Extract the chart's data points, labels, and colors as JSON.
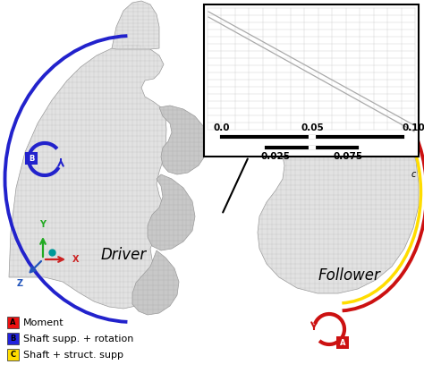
{
  "fig_width": 4.74,
  "fig_height": 4.17,
  "dpi": 100,
  "bg_color": "#ffffff",
  "legend": [
    {
      "label": "A",
      "text": "Moment",
      "color": "#ee1111"
    },
    {
      "label": "B",
      "text": "Shaft supp. + rotation",
      "color": "#2222dd"
    },
    {
      "label": "C",
      "text": "Shaft + struct. supp",
      "color": "#ffdd00"
    }
  ],
  "driver_label": "Driver",
  "follower_label": "Follower",
  "blue_arc_color": "#2222cc",
  "red_arc_color": "#cc1111",
  "yellow_arc_color": "#ffdd00",
  "axis_y_color": "#22aa22",
  "axis_x_color": "#cc2222",
  "axis_z_color": "#2255bb",
  "teal_dot_color": "#009999",
  "mesh_color": "#bbbbbb",
  "mesh_lw": 0.22,
  "gear_face": "#e2e2e2",
  "gear_edge": "#999999"
}
